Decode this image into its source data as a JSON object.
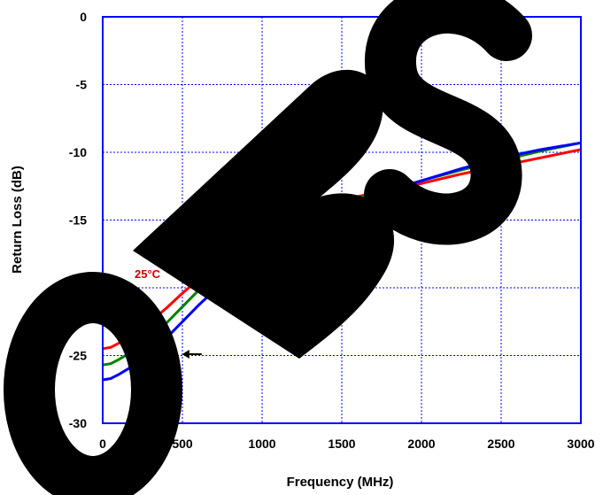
{
  "chart_data": {
    "type": "line",
    "title": "",
    "xlabel": "Frequency (MHz)",
    "ylabel": "Return Loss (dB)",
    "xlim": [
      0,
      3000
    ],
    "ylim": [
      -30,
      0
    ],
    "x_ticks": [
      0,
      500,
      1000,
      1500,
      2000,
      2500,
      3000
    ],
    "y_ticks": [
      0,
      -5,
      -10,
      -15,
      -20,
      -25,
      -30
    ],
    "x_tick_labels": [
      "0",
      "500",
      "1000",
      "1500",
      "2000",
      "2500",
      "3000"
    ],
    "y_tick_labels": [
      "0",
      "-5",
      "-10",
      "-15",
      "-20",
      "-25",
      "-30"
    ],
    "grid": true,
    "watermark": "OBS",
    "annotation": "25°C",
    "series": [
      {
        "color": "#ff0000",
        "x": [
          0,
          50,
          100,
          200,
          300,
          400,
          500,
          600,
          700,
          800,
          900,
          1000,
          1100,
          1200,
          1300,
          1400,
          1500,
          1750,
          2000,
          2250,
          2500,
          2750,
          3000
        ],
        "y": [
          -24.5,
          -24.4,
          -24.1,
          -23.4,
          -22.5,
          -21.5,
          -20.4,
          -19.4,
          -18.4,
          -17.5,
          -16.7,
          -16.0,
          -15.3,
          -14.8,
          -14.3,
          -13.9,
          -13.5,
          -12.9,
          -12.3,
          -11.6,
          -11.0,
          -10.4,
          -9.8
        ]
      },
      {
        "color": "#008000",
        "x": [
          0,
          50,
          100,
          200,
          300,
          400,
          500,
          600,
          700,
          800,
          900,
          1000,
          1100,
          1200,
          1300,
          1400,
          1500,
          1750,
          2000,
          2250,
          2500,
          2750,
          3000
        ],
        "y": [
          -25.7,
          -25.6,
          -25.3,
          -24.6,
          -23.7,
          -22.6,
          -21.4,
          -20.2,
          -19.1,
          -18.1,
          -17.2,
          -16.4,
          -15.6,
          -15.0,
          -14.5,
          -14.1,
          -13.7,
          -12.9,
          -12.1,
          -11.3,
          -10.6,
          -9.9,
          -9.3
        ]
      },
      {
        "color": "#0000ff",
        "x": [
          0,
          50,
          100,
          200,
          300,
          400,
          500,
          600,
          700,
          800,
          900,
          1000,
          1100,
          1200,
          1300,
          1400,
          1500,
          1750,
          2000,
          2250,
          2500,
          2750,
          3000
        ],
        "y": [
          -26.8,
          -26.7,
          -26.4,
          -25.7,
          -24.8,
          -23.7,
          -22.5,
          -21.3,
          -20.2,
          -19.1,
          -18.1,
          -17.2,
          -16.4,
          -15.7,
          -15.1,
          -14.5,
          -14.0,
          -13.0,
          -12.1,
          -11.2,
          -10.4,
          -9.8,
          -9.3
        ]
      }
    ],
    "markers": [
      {
        "type": "arrow-down",
        "x": 270,
        "y": -22.3
      },
      {
        "type": "arrow-left",
        "x": 820,
        "y": -20.6
      },
      {
        "type": "arrow-left",
        "x": 510,
        "y": -24.9
      }
    ]
  }
}
